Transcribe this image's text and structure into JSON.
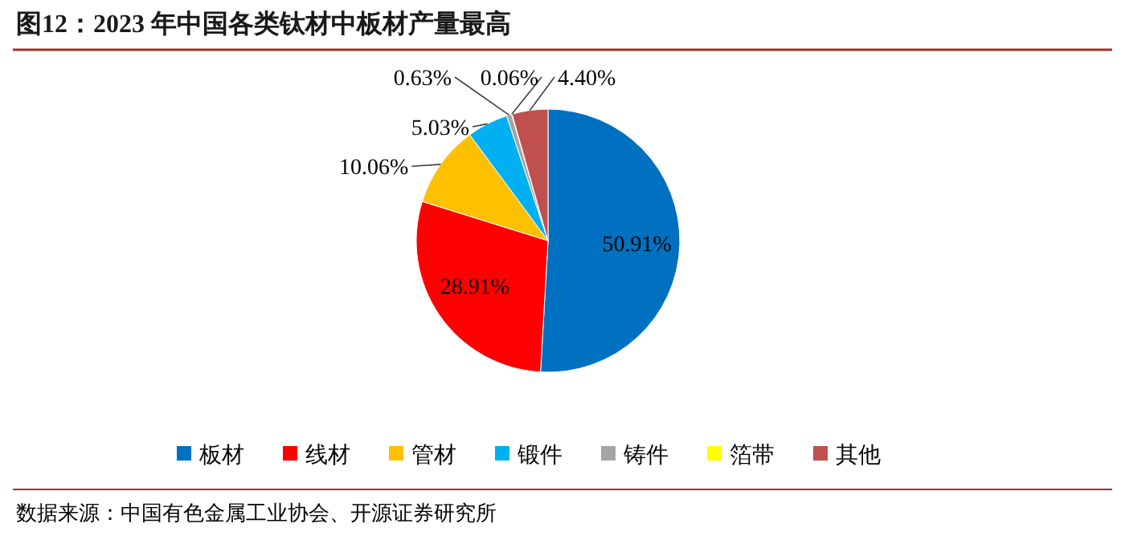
{
  "chart_data": {
    "type": "pie",
    "title": "图12：2023 年中国各类钛材中板材产量最高",
    "categories": [
      "板材",
      "线材",
      "管材",
      "锻件",
      "铸件",
      "箔带",
      "其他"
    ],
    "values": [
      50.91,
      28.91,
      10.06,
      5.03,
      0.63,
      0.06,
      4.4
    ],
    "colors": [
      "#0070c0",
      "#ff0000",
      "#ffc000",
      "#00b0f0",
      "#a5a5a5",
      "#ffff00",
      "#c0504d"
    ],
    "value_labels": [
      "50.91%",
      "28.91%",
      "10.06%",
      "5.03%",
      "0.63%",
      "0.06%",
      "4.40%"
    ],
    "legend": "bottom",
    "annotations": [
      "数据来源：中国有色金属工业协会、开源证券研究所"
    ]
  }
}
